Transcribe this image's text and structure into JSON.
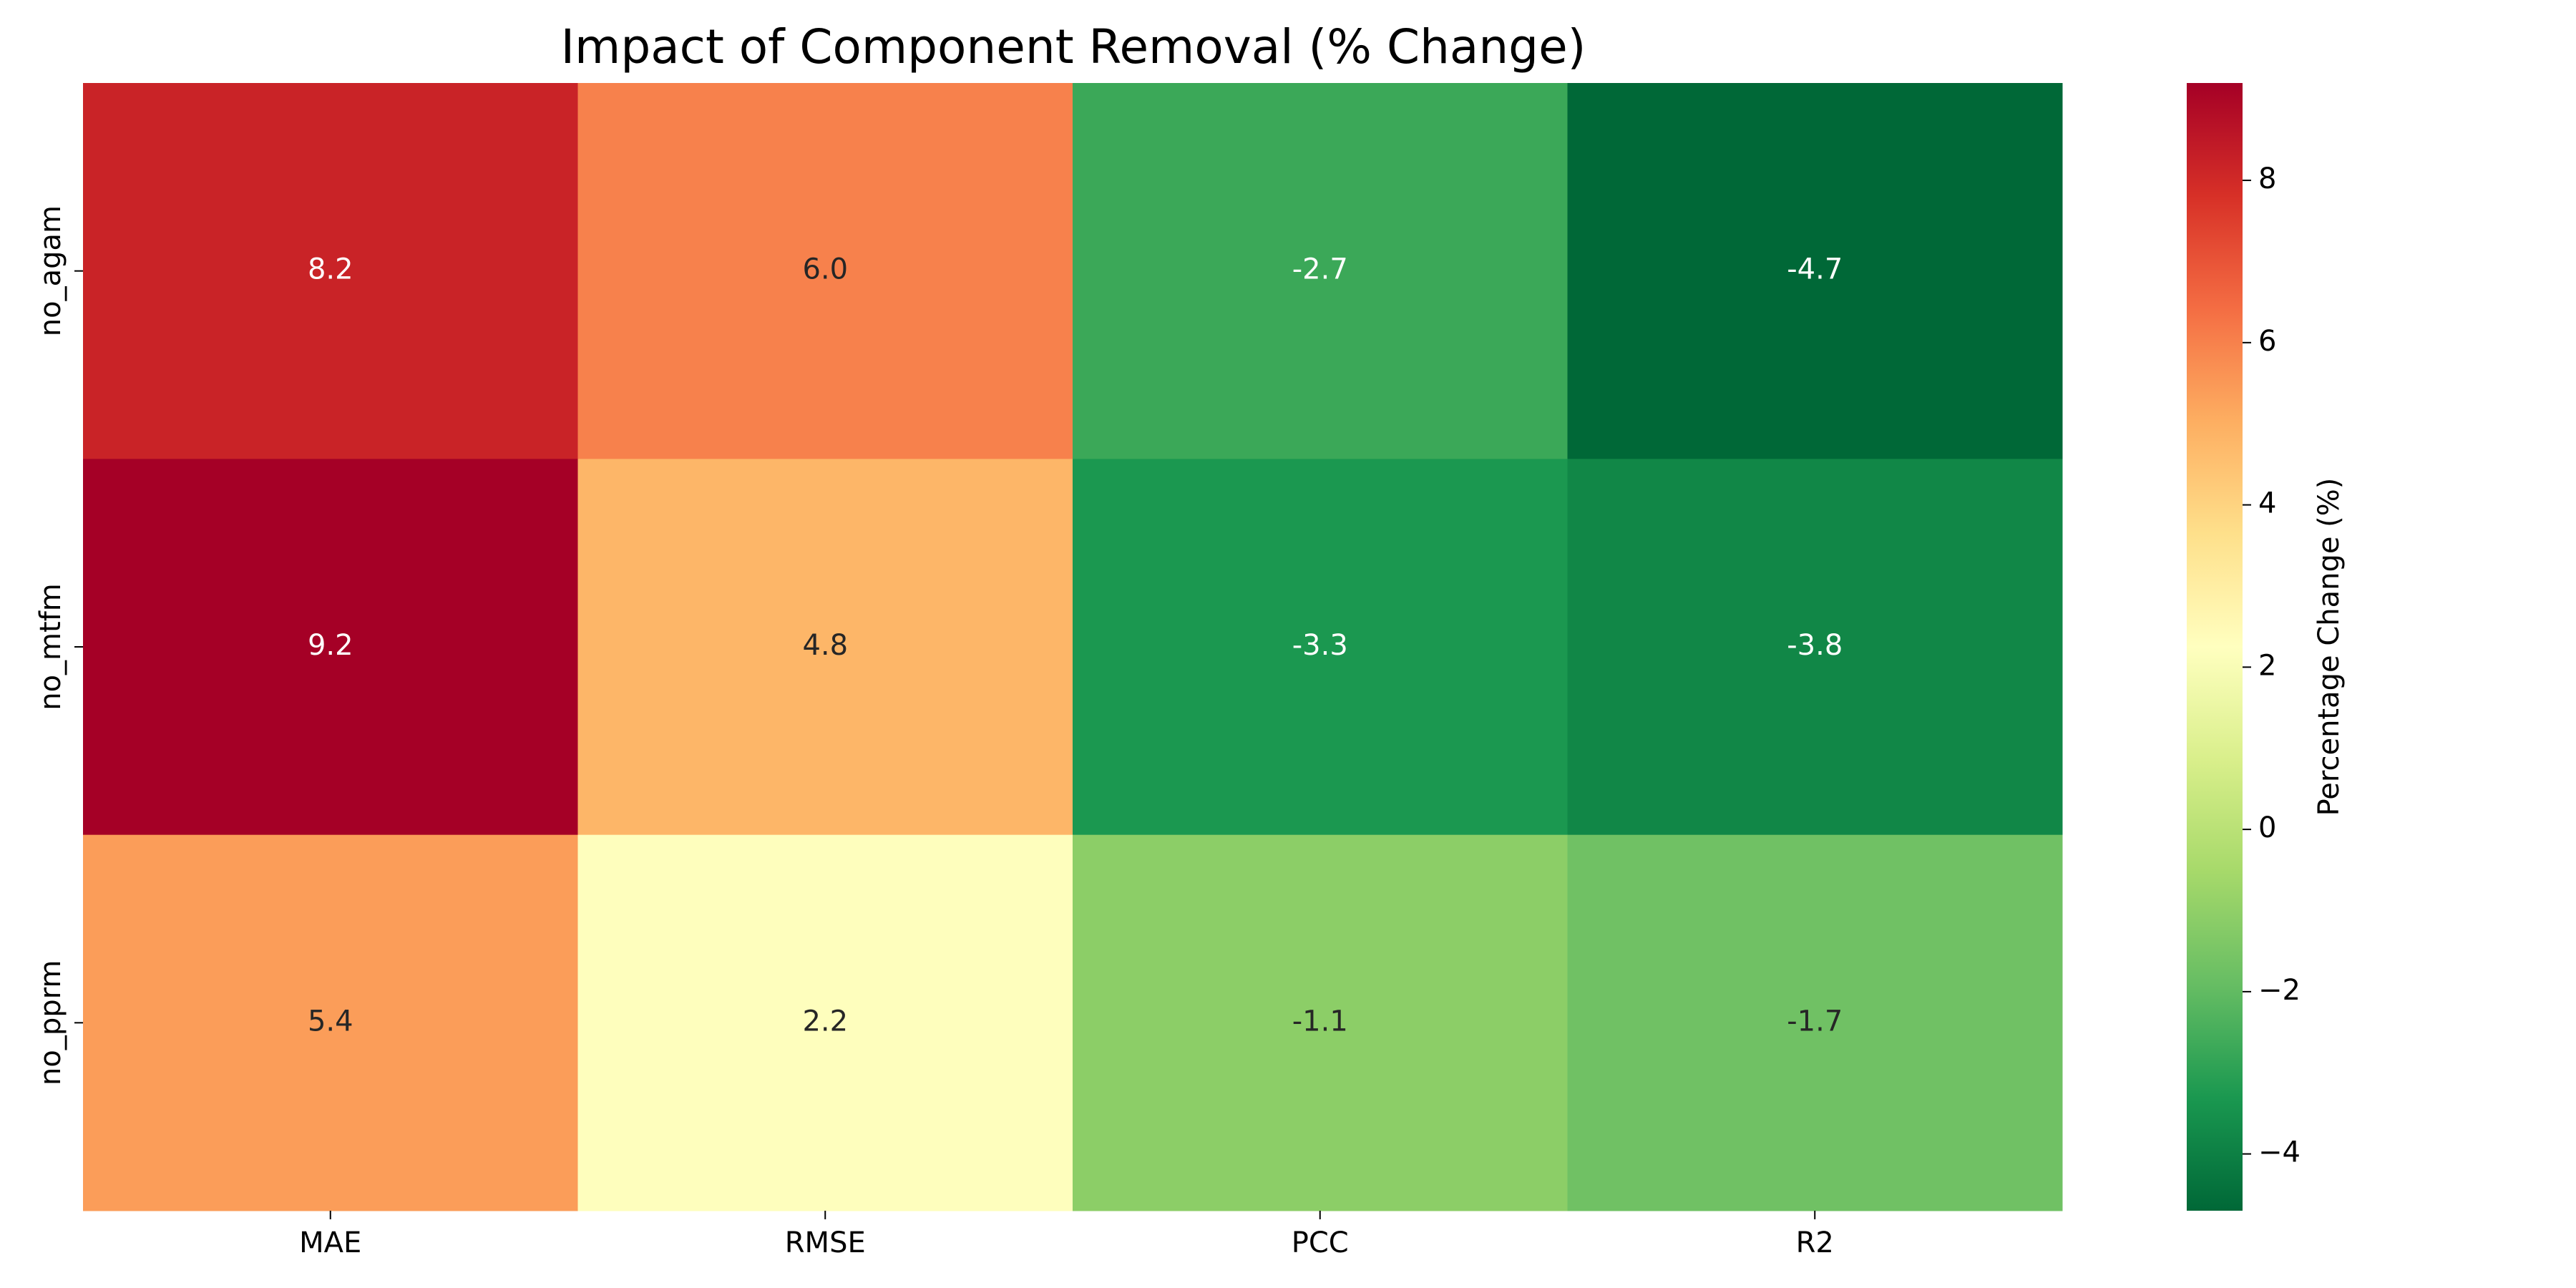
{
  "chart_data": {
    "type": "heatmap",
    "title": "Impact of Component Removal (% Change)",
    "xlabel": "",
    "ylabel": "",
    "x_categories": [
      "MAE",
      "RMSE",
      "PCC",
      "R2"
    ],
    "y_categories": [
      "no_agam",
      "no_mtfm",
      "no_pprm"
    ],
    "values": [
      [
        8.2,
        6.0,
        -2.7,
        -4.7
      ],
      [
        9.2,
        4.8,
        -3.3,
        -3.8
      ],
      [
        5.4,
        2.2,
        -1.1,
        -1.7
      ]
    ],
    "value_labels": [
      [
        "8.2",
        "6.0",
        "-2.7",
        "-4.7"
      ],
      [
        "9.2",
        "4.8",
        "-3.3",
        "-3.8"
      ],
      [
        "5.4",
        "2.2",
        "-1.1",
        "-1.7"
      ]
    ],
    "colormap": "RdYlGn_r",
    "vmin": -4.7,
    "vmax": 9.2,
    "colorbar": {
      "label": "Percentage Change (%)",
      "ticks": [
        -4,
        -2,
        0,
        2,
        4,
        6,
        8
      ],
      "tick_labels": [
        "−4",
        "−2",
        "0",
        "2",
        "4",
        "6",
        "8"
      ]
    },
    "grid": false,
    "legend": "colorbar-right"
  }
}
